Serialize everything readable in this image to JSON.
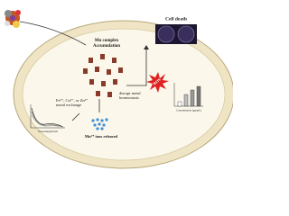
{
  "labels": {
    "accumulation": [
      "Mn complex",
      "Accumulation"
    ],
    "cell_death": "Cell death",
    "disrupt": [
      "disrupt metal",
      "homeostasis"
    ],
    "ros": "ROS",
    "exchange": [
      "Fe²⁺, Cu²⁺, or Zn²⁺",
      "metal exchange"
    ],
    "released": "Mn²⁺ ions released",
    "wavelength": "Wavelength nm",
    "concentration": "Concentration (μg/mL)"
  }
}
